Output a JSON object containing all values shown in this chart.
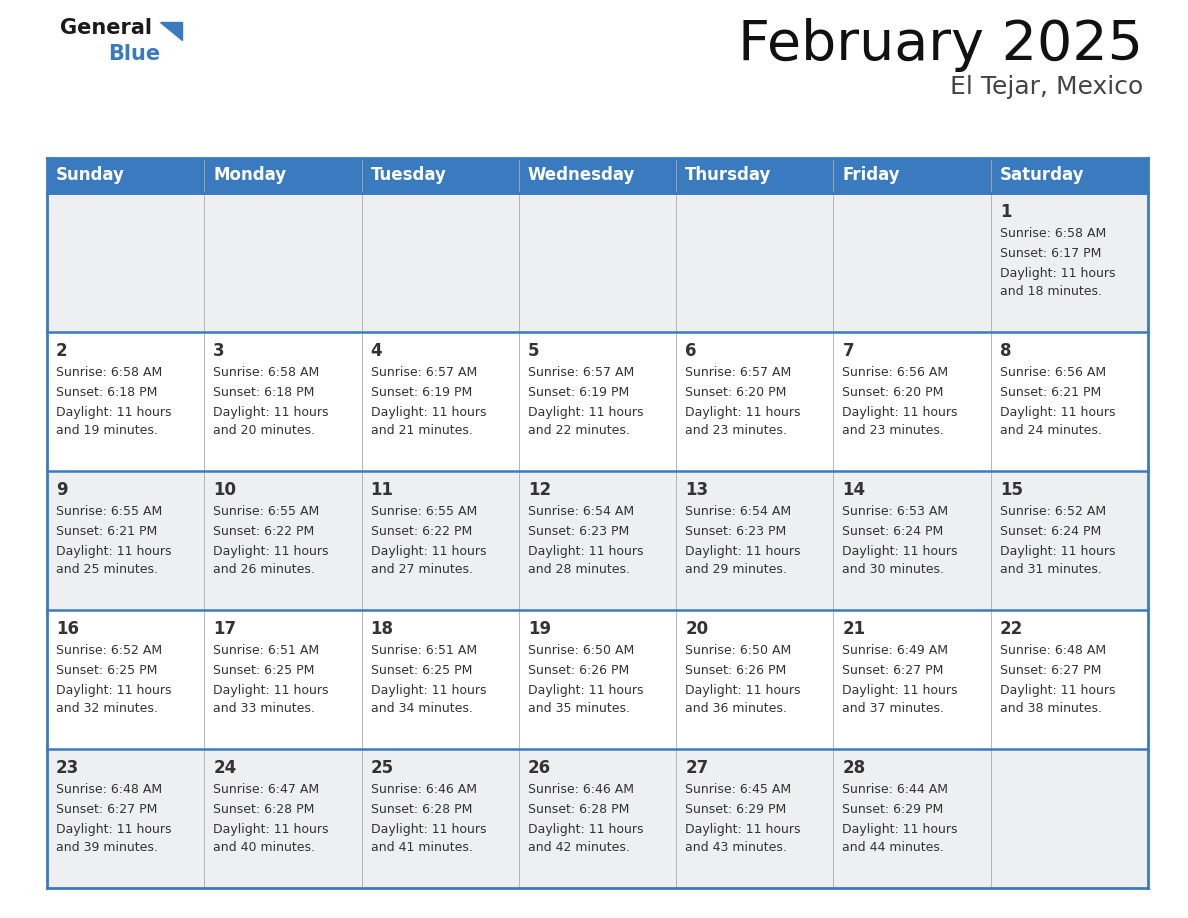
{
  "title": "February 2025",
  "subtitle": "El Tejar, Mexico",
  "header_color": "#3a7abf",
  "header_text_color": "#ffffff",
  "day_names": [
    "Sunday",
    "Monday",
    "Tuesday",
    "Wednesday",
    "Thursday",
    "Friday",
    "Saturday"
  ],
  "background_color": "#ffffff",
  "cell_bg_even": "#eeeff0",
  "cell_bg_odd": "#ffffff",
  "border_color": "#3a7abf",
  "text_color": "#333333",
  "days": [
    {
      "day": 1,
      "col": 6,
      "row": 0,
      "sunrise": "6:58 AM",
      "sunset": "6:17 PM",
      "daylight": "11 hours and 18 minutes."
    },
    {
      "day": 2,
      "col": 0,
      "row": 1,
      "sunrise": "6:58 AM",
      "sunset": "6:18 PM",
      "daylight": "11 hours and 19 minutes."
    },
    {
      "day": 3,
      "col": 1,
      "row": 1,
      "sunrise": "6:58 AM",
      "sunset": "6:18 PM",
      "daylight": "11 hours and 20 minutes."
    },
    {
      "day": 4,
      "col": 2,
      "row": 1,
      "sunrise": "6:57 AM",
      "sunset": "6:19 PM",
      "daylight": "11 hours and 21 minutes."
    },
    {
      "day": 5,
      "col": 3,
      "row": 1,
      "sunrise": "6:57 AM",
      "sunset": "6:19 PM",
      "daylight": "11 hours and 22 minutes."
    },
    {
      "day": 6,
      "col": 4,
      "row": 1,
      "sunrise": "6:57 AM",
      "sunset": "6:20 PM",
      "daylight": "11 hours and 23 minutes."
    },
    {
      "day": 7,
      "col": 5,
      "row": 1,
      "sunrise": "6:56 AM",
      "sunset": "6:20 PM",
      "daylight": "11 hours and 23 minutes."
    },
    {
      "day": 8,
      "col": 6,
      "row": 1,
      "sunrise": "6:56 AM",
      "sunset": "6:21 PM",
      "daylight": "11 hours and 24 minutes."
    },
    {
      "day": 9,
      "col": 0,
      "row": 2,
      "sunrise": "6:55 AM",
      "sunset": "6:21 PM",
      "daylight": "11 hours and 25 minutes."
    },
    {
      "day": 10,
      "col": 1,
      "row": 2,
      "sunrise": "6:55 AM",
      "sunset": "6:22 PM",
      "daylight": "11 hours and 26 minutes."
    },
    {
      "day": 11,
      "col": 2,
      "row": 2,
      "sunrise": "6:55 AM",
      "sunset": "6:22 PM",
      "daylight": "11 hours and 27 minutes."
    },
    {
      "day": 12,
      "col": 3,
      "row": 2,
      "sunrise": "6:54 AM",
      "sunset": "6:23 PM",
      "daylight": "11 hours and 28 minutes."
    },
    {
      "day": 13,
      "col": 4,
      "row": 2,
      "sunrise": "6:54 AM",
      "sunset": "6:23 PM",
      "daylight": "11 hours and 29 minutes."
    },
    {
      "day": 14,
      "col": 5,
      "row": 2,
      "sunrise": "6:53 AM",
      "sunset": "6:24 PM",
      "daylight": "11 hours and 30 minutes."
    },
    {
      "day": 15,
      "col": 6,
      "row": 2,
      "sunrise": "6:52 AM",
      "sunset": "6:24 PM",
      "daylight": "11 hours and 31 minutes."
    },
    {
      "day": 16,
      "col": 0,
      "row": 3,
      "sunrise": "6:52 AM",
      "sunset": "6:25 PM",
      "daylight": "11 hours and 32 minutes."
    },
    {
      "day": 17,
      "col": 1,
      "row": 3,
      "sunrise": "6:51 AM",
      "sunset": "6:25 PM",
      "daylight": "11 hours and 33 minutes."
    },
    {
      "day": 18,
      "col": 2,
      "row": 3,
      "sunrise": "6:51 AM",
      "sunset": "6:25 PM",
      "daylight": "11 hours and 34 minutes."
    },
    {
      "day": 19,
      "col": 3,
      "row": 3,
      "sunrise": "6:50 AM",
      "sunset": "6:26 PM",
      "daylight": "11 hours and 35 minutes."
    },
    {
      "day": 20,
      "col": 4,
      "row": 3,
      "sunrise": "6:50 AM",
      "sunset": "6:26 PM",
      "daylight": "11 hours and 36 minutes."
    },
    {
      "day": 21,
      "col": 5,
      "row": 3,
      "sunrise": "6:49 AM",
      "sunset": "6:27 PM",
      "daylight": "11 hours and 37 minutes."
    },
    {
      "day": 22,
      "col": 6,
      "row": 3,
      "sunrise": "6:48 AM",
      "sunset": "6:27 PM",
      "daylight": "11 hours and 38 minutes."
    },
    {
      "day": 23,
      "col": 0,
      "row": 4,
      "sunrise": "6:48 AM",
      "sunset": "6:27 PM",
      "daylight": "11 hours and 39 minutes."
    },
    {
      "day": 24,
      "col": 1,
      "row": 4,
      "sunrise": "6:47 AM",
      "sunset": "6:28 PM",
      "daylight": "11 hours and 40 minutes."
    },
    {
      "day": 25,
      "col": 2,
      "row": 4,
      "sunrise": "6:46 AM",
      "sunset": "6:28 PM",
      "daylight": "11 hours and 41 minutes."
    },
    {
      "day": 26,
      "col": 3,
      "row": 4,
      "sunrise": "6:46 AM",
      "sunset": "6:28 PM",
      "daylight": "11 hours and 42 minutes."
    },
    {
      "day": 27,
      "col": 4,
      "row": 4,
      "sunrise": "6:45 AM",
      "sunset": "6:29 PM",
      "daylight": "11 hours and 43 minutes."
    },
    {
      "day": 28,
      "col": 5,
      "row": 4,
      "sunrise": "6:44 AM",
      "sunset": "6:29 PM",
      "daylight": "11 hours and 44 minutes."
    }
  ],
  "logo_text_general": "General",
  "logo_text_blue": "Blue",
  "logo_color_general": "#1a1a1a",
  "logo_color_blue": "#3a7abf",
  "logo_triangle_color": "#3a7abf",
  "title_fontsize": 40,
  "subtitle_fontsize": 18,
  "header_fontsize": 12,
  "day_num_fontsize": 12,
  "cell_text_fontsize": 9
}
